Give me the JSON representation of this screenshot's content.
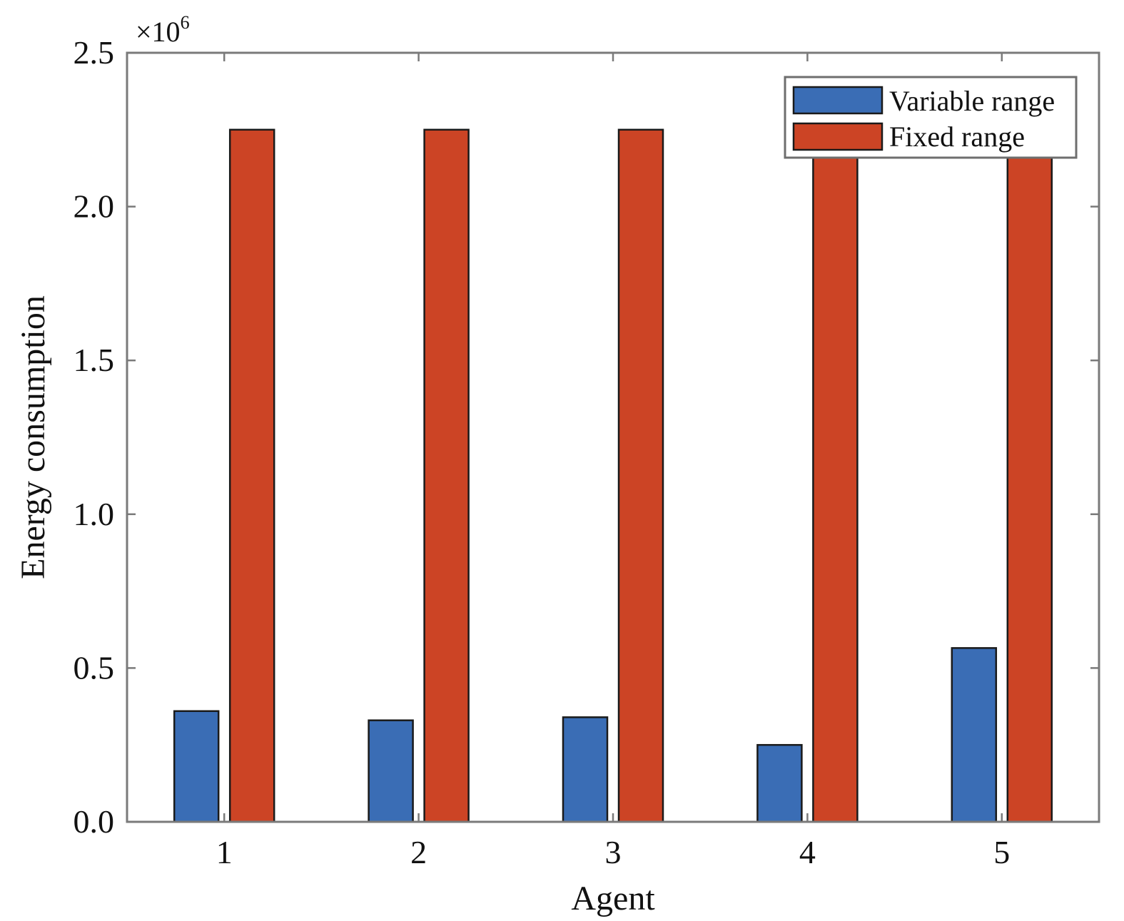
{
  "chart_data": {
    "type": "bar",
    "categories": [
      "1",
      "2",
      "3",
      "4",
      "5"
    ],
    "series": [
      {
        "name": "Variable range",
        "color": "#3a6db5",
        "values": [
          0.36,
          0.33,
          0.34,
          0.25,
          0.565
        ]
      },
      {
        "name": "Fixed range",
        "color": "#cc4425",
        "values": [
          2.25,
          2.25,
          2.25,
          2.25,
          2.25
        ]
      }
    ],
    "xlabel": "Agent",
    "ylabel": "Energy consumption",
    "ylim": [
      0,
      2.5
    ],
    "yticks": [
      "0.0",
      "0.5",
      "1.0",
      "1.5",
      "2.0",
      "2.5"
    ],
    "ytick_values": [
      0,
      0.5,
      1.0,
      1.5,
      2.0,
      2.5
    ],
    "y_multiplier": {
      "base": "×10",
      "exponent": "6"
    },
    "legend_position": "top-right",
    "grid": false
  }
}
